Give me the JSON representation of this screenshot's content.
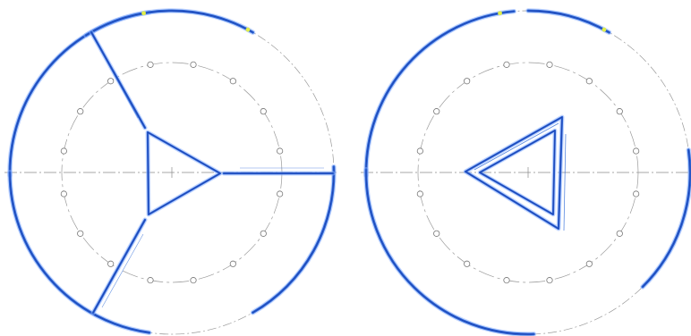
{
  "title": "",
  "colors": {
    "background": "#ffffff",
    "outline_blue": "#2f6bd8",
    "outline_dark": "#1e3fb0",
    "outline_glow": "#8fb3ff",
    "centerline": "#8a8a8a",
    "construction": "#9a9a9a",
    "small_circle_stroke": "#777777",
    "marker_yellow": "#e0ee4a"
  },
  "views": [
    {
      "name": "left-view",
      "description_shape": "tri-spoke",
      "small_circle_count": 16,
      "has_outer_blue_arcs": true,
      "has_center_triangle": true,
      "spokes": 3
    },
    {
      "name": "right-view",
      "description_shape": "inner-triangle",
      "small_circle_count": 16,
      "has_outer_blue_arcs": true,
      "has_center_triangle": true,
      "spokes": 0
    }
  ]
}
